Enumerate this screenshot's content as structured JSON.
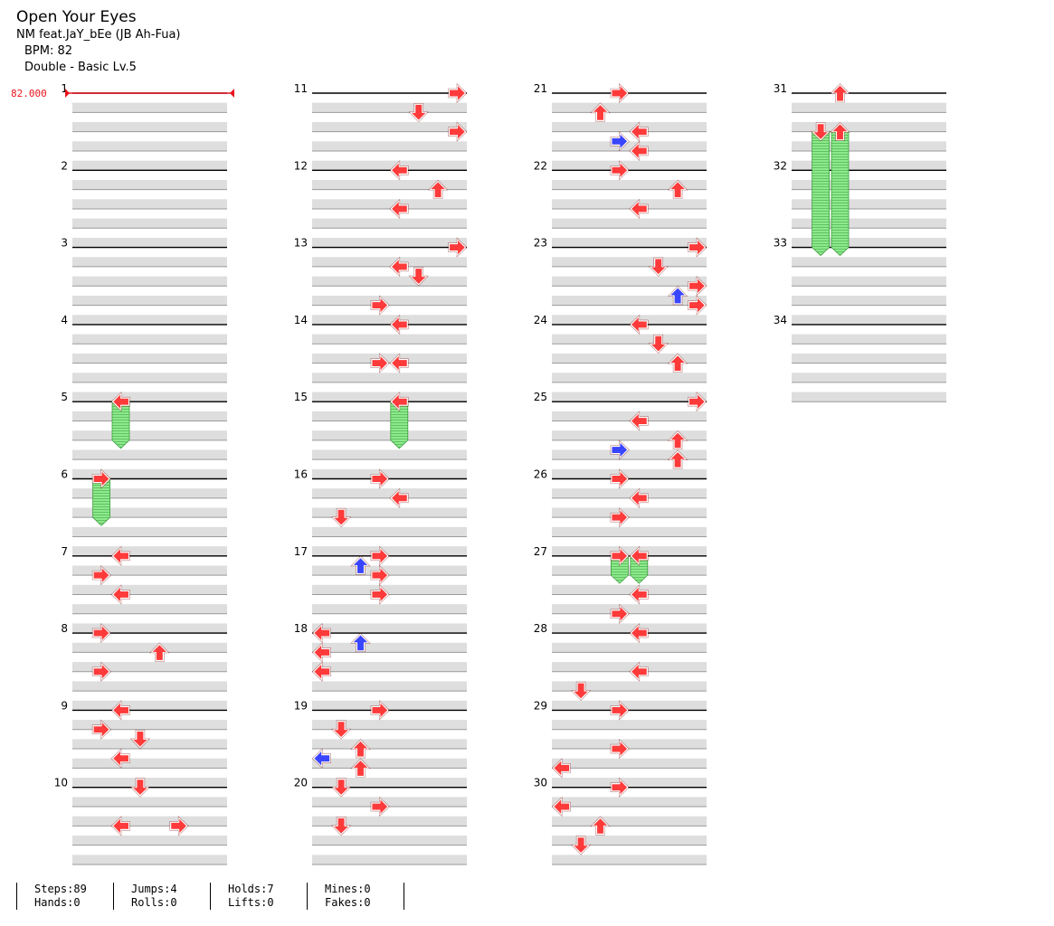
{
  "song": {
    "title": "Open Your Eyes",
    "artist": "NM feat.JaY_bEe (JB Ah-Fua)",
    "bpm_text": "BPM: 82",
    "difficulty_text": "Double - Basic  Lv.5"
  },
  "bpm_marker": {
    "measure": 1,
    "label": "82.000"
  },
  "colors": {
    "note_red": "#ff3a3a",
    "note_blue": "#3a45ff",
    "hold_green": "#7fe27f",
    "bpm_red": "#e8141e",
    "lane_gray": "#dedede"
  },
  "measures": [
    "1",
    "2",
    "3",
    "4",
    "5",
    "6",
    "7",
    "8",
    "9",
    "10",
    "11",
    "12",
    "13",
    "14",
    "15",
    "16",
    "17",
    "18",
    "19",
    "20",
    "21",
    "22",
    "23",
    "24",
    "25",
    "26",
    "27",
    "28",
    "29",
    "30",
    "31",
    "32",
    "33",
    "34"
  ],
  "notes": [
    {
      "m": 5,
      "b": 0,
      "lane": 2,
      "dir": "left",
      "color": "red"
    },
    {
      "m": 6,
      "b": 0,
      "lane": 1,
      "dir": "right",
      "color": "red"
    },
    {
      "m": 7,
      "b": 0,
      "lane": 2,
      "dir": "left",
      "color": "red"
    },
    {
      "m": 7,
      "b": 1,
      "lane": 1,
      "dir": "right",
      "color": "red"
    },
    {
      "m": 7,
      "b": 2,
      "lane": 2,
      "dir": "left",
      "color": "red"
    },
    {
      "m": 8,
      "b": 0,
      "lane": 1,
      "dir": "right",
      "color": "red"
    },
    {
      "m": 8,
      "b": 1,
      "lane": 4,
      "dir": "up",
      "color": "red"
    },
    {
      "m": 8,
      "b": 2,
      "lane": 1,
      "dir": "right",
      "color": "red"
    },
    {
      "m": 9,
      "b": 0,
      "lane": 2,
      "dir": "left",
      "color": "red"
    },
    {
      "m": 9,
      "b": 1,
      "lane": 1,
      "dir": "right",
      "color": "red"
    },
    {
      "m": 9,
      "b": 1.5,
      "lane": 3,
      "dir": "down",
      "color": "red"
    },
    {
      "m": 9,
      "b": 2.5,
      "lane": 2,
      "dir": "left",
      "color": "red"
    },
    {
      "m": 10,
      "b": 0,
      "lane": 3,
      "dir": "down",
      "color": "red"
    },
    {
      "m": 10,
      "b": 2,
      "lane": 2,
      "dir": "left",
      "color": "red"
    },
    {
      "m": 10,
      "b": 2,
      "lane": 5,
      "dir": "right",
      "color": "red"
    },
    {
      "m": 11,
      "b": 0,
      "lane": 7,
      "dir": "right",
      "color": "red"
    },
    {
      "m": 11,
      "b": 1,
      "lane": 5,
      "dir": "down",
      "color": "red"
    },
    {
      "m": 11,
      "b": 2,
      "lane": 7,
      "dir": "right",
      "color": "red"
    },
    {
      "m": 12,
      "b": 0,
      "lane": 4,
      "dir": "left",
      "color": "red"
    },
    {
      "m": 12,
      "b": 1,
      "lane": 6,
      "dir": "up",
      "color": "red"
    },
    {
      "m": 12,
      "b": 2,
      "lane": 4,
      "dir": "left",
      "color": "red"
    },
    {
      "m": 13,
      "b": 0,
      "lane": 7,
      "dir": "right",
      "color": "red"
    },
    {
      "m": 13,
      "b": 1,
      "lane": 4,
      "dir": "left",
      "color": "red"
    },
    {
      "m": 13,
      "b": 1.5,
      "lane": 5,
      "dir": "down",
      "color": "red"
    },
    {
      "m": 13,
      "b": 3,
      "lane": 3,
      "dir": "right",
      "color": "red"
    },
    {
      "m": 14,
      "b": 0,
      "lane": 4,
      "dir": "left",
      "color": "red"
    },
    {
      "m": 14,
      "b": 2,
      "lane": 3,
      "dir": "right",
      "color": "red"
    },
    {
      "m": 14,
      "b": 2,
      "lane": 4,
      "dir": "left",
      "color": "red"
    },
    {
      "m": 15,
      "b": 0,
      "lane": 4,
      "dir": "left",
      "color": "red"
    },
    {
      "m": 16,
      "b": 0,
      "lane": 3,
      "dir": "right",
      "color": "red"
    },
    {
      "m": 16,
      "b": 1,
      "lane": 4,
      "dir": "left",
      "color": "red"
    },
    {
      "m": 16,
      "b": 2,
      "lane": 1,
      "dir": "down",
      "color": "red"
    },
    {
      "m": 17,
      "b": 0,
      "lane": 3,
      "dir": "right",
      "color": "red"
    },
    {
      "m": 17,
      "b": 0.5,
      "lane": 2,
      "dir": "up",
      "color": "blue"
    },
    {
      "m": 17,
      "b": 1,
      "lane": 3,
      "dir": "right",
      "color": "red"
    },
    {
      "m": 17,
      "b": 2,
      "lane": 3,
      "dir": "right",
      "color": "red"
    },
    {
      "m": 18,
      "b": 0,
      "lane": 0,
      "dir": "left",
      "color": "red"
    },
    {
      "m": 18,
      "b": 0.5,
      "lane": 2,
      "dir": "up",
      "color": "blue"
    },
    {
      "m": 18,
      "b": 1,
      "lane": 0,
      "dir": "left",
      "color": "red"
    },
    {
      "m": 18,
      "b": 2,
      "lane": 0,
      "dir": "left",
      "color": "red"
    },
    {
      "m": 19,
      "b": 0,
      "lane": 3,
      "dir": "right",
      "color": "red"
    },
    {
      "m": 19,
      "b": 1,
      "lane": 1,
      "dir": "down",
      "color": "red"
    },
    {
      "m": 19,
      "b": 2,
      "lane": 2,
      "dir": "up",
      "color": "red"
    },
    {
      "m": 19,
      "b": 2.5,
      "lane": 0,
      "dir": "left",
      "color": "blue"
    },
    {
      "m": 19,
      "b": 3,
      "lane": 2,
      "dir": "up",
      "color": "red"
    },
    {
      "m": 20,
      "b": 0,
      "lane": 1,
      "dir": "down",
      "color": "red"
    },
    {
      "m": 20,
      "b": 1,
      "lane": 3,
      "dir": "right",
      "color": "red"
    },
    {
      "m": 20,
      "b": 2,
      "lane": 1,
      "dir": "down",
      "color": "red"
    },
    {
      "m": 21,
      "b": 0,
      "lane": 3,
      "dir": "right",
      "color": "red"
    },
    {
      "m": 21,
      "b": 1,
      "lane": 2,
      "dir": "up",
      "color": "red"
    },
    {
      "m": 21,
      "b": 2,
      "lane": 4,
      "dir": "left",
      "color": "red"
    },
    {
      "m": 21,
      "b": 2.5,
      "lane": 3,
      "dir": "right",
      "color": "blue"
    },
    {
      "m": 21,
      "b": 3,
      "lane": 4,
      "dir": "left",
      "color": "red"
    },
    {
      "m": 22,
      "b": 0,
      "lane": 3,
      "dir": "right",
      "color": "red"
    },
    {
      "m": 22,
      "b": 1,
      "lane": 6,
      "dir": "up",
      "color": "red"
    },
    {
      "m": 22,
      "b": 2,
      "lane": 4,
      "dir": "left",
      "color": "red"
    },
    {
      "m": 23,
      "b": 0,
      "lane": 7,
      "dir": "right",
      "color": "red"
    },
    {
      "m": 23,
      "b": 1,
      "lane": 5,
      "dir": "down",
      "color": "red"
    },
    {
      "m": 23,
      "b": 2,
      "lane": 7,
      "dir": "right",
      "color": "red"
    },
    {
      "m": 23,
      "b": 2.5,
      "lane": 6,
      "dir": "up",
      "color": "blue"
    },
    {
      "m": 23,
      "b": 3,
      "lane": 7,
      "dir": "right",
      "color": "red"
    },
    {
      "m": 24,
      "b": 0,
      "lane": 4,
      "dir": "left",
      "color": "red"
    },
    {
      "m": 24,
      "b": 1,
      "lane": 5,
      "dir": "down",
      "color": "red"
    },
    {
      "m": 24,
      "b": 2,
      "lane": 6,
      "dir": "up",
      "color": "red"
    },
    {
      "m": 25,
      "b": 0,
      "lane": 7,
      "dir": "right",
      "color": "red"
    },
    {
      "m": 25,
      "b": 1,
      "lane": 4,
      "dir": "left",
      "color": "red"
    },
    {
      "m": 25,
      "b": 2,
      "lane": 6,
      "dir": "up",
      "color": "red"
    },
    {
      "m": 25,
      "b": 2.5,
      "lane": 3,
      "dir": "right",
      "color": "blue"
    },
    {
      "m": 25,
      "b": 3,
      "lane": 6,
      "dir": "up",
      "color": "red"
    },
    {
      "m": 26,
      "b": 0,
      "lane": 3,
      "dir": "right",
      "color": "red"
    },
    {
      "m": 26,
      "b": 1,
      "lane": 4,
      "dir": "left",
      "color": "red"
    },
    {
      "m": 26,
      "b": 2,
      "lane": 3,
      "dir": "right",
      "color": "red"
    },
    {
      "m": 27,
      "b": 0,
      "lane": 3,
      "dir": "right",
      "color": "red"
    },
    {
      "m": 27,
      "b": 0,
      "lane": 4,
      "dir": "left",
      "color": "red"
    },
    {
      "m": 27,
      "b": 2,
      "lane": 4,
      "dir": "left",
      "color": "red"
    },
    {
      "m": 27,
      "b": 3,
      "lane": 3,
      "dir": "right",
      "color": "red"
    },
    {
      "m": 28,
      "b": 0,
      "lane": 4,
      "dir": "left",
      "color": "red"
    },
    {
      "m": 28,
      "b": 2,
      "lane": 4,
      "dir": "left",
      "color": "red"
    },
    {
      "m": 28,
      "b": 3,
      "lane": 1,
      "dir": "down",
      "color": "red"
    },
    {
      "m": 29,
      "b": 0,
      "lane": 3,
      "dir": "right",
      "color": "red"
    },
    {
      "m": 29,
      "b": 2,
      "lane": 3,
      "dir": "right",
      "color": "red"
    },
    {
      "m": 29,
      "b": 3,
      "lane": 0,
      "dir": "left",
      "color": "red"
    },
    {
      "m": 30,
      "b": 0,
      "lane": 3,
      "dir": "right",
      "color": "red"
    },
    {
      "m": 30,
      "b": 1,
      "lane": 0,
      "dir": "left",
      "color": "red"
    },
    {
      "m": 30,
      "b": 2,
      "lane": 2,
      "dir": "up",
      "color": "red"
    },
    {
      "m": 30,
      "b": 3,
      "lane": 1,
      "dir": "down",
      "color": "red"
    },
    {
      "m": 31,
      "b": 0,
      "lane": 2,
      "dir": "up",
      "color": "red"
    },
    {
      "m": 31,
      "b": 2,
      "lane": 1,
      "dir": "down",
      "color": "red"
    },
    {
      "m": 31,
      "b": 2,
      "lane": 2,
      "dir": "up",
      "color": "red"
    }
  ],
  "holds": [
    {
      "m": 5,
      "b": 0,
      "lane": 2,
      "beats": 2
    },
    {
      "m": 6,
      "b": 0,
      "lane": 1,
      "beats": 2
    },
    {
      "m": 15,
      "b": 0,
      "lane": 4,
      "beats": 2
    },
    {
      "m": 27,
      "b": 0,
      "lane": 3,
      "beats": 1
    },
    {
      "m": 27,
      "b": 0,
      "lane": 4,
      "beats": 1
    },
    {
      "m": 31,
      "b": 2,
      "lane": 1,
      "beats": 6
    },
    {
      "m": 31,
      "b": 2,
      "lane": 2,
      "beats": 6
    }
  ],
  "stats": [
    {
      "top": "Steps:89",
      "bottom": "Hands:0"
    },
    {
      "top": "Jumps:4",
      "bottom": "Rolls:0"
    },
    {
      "top": "Holds:7",
      "bottom": "Lifts:0"
    },
    {
      "top": "Mines:0",
      "bottom": "Fakes:0"
    }
  ]
}
